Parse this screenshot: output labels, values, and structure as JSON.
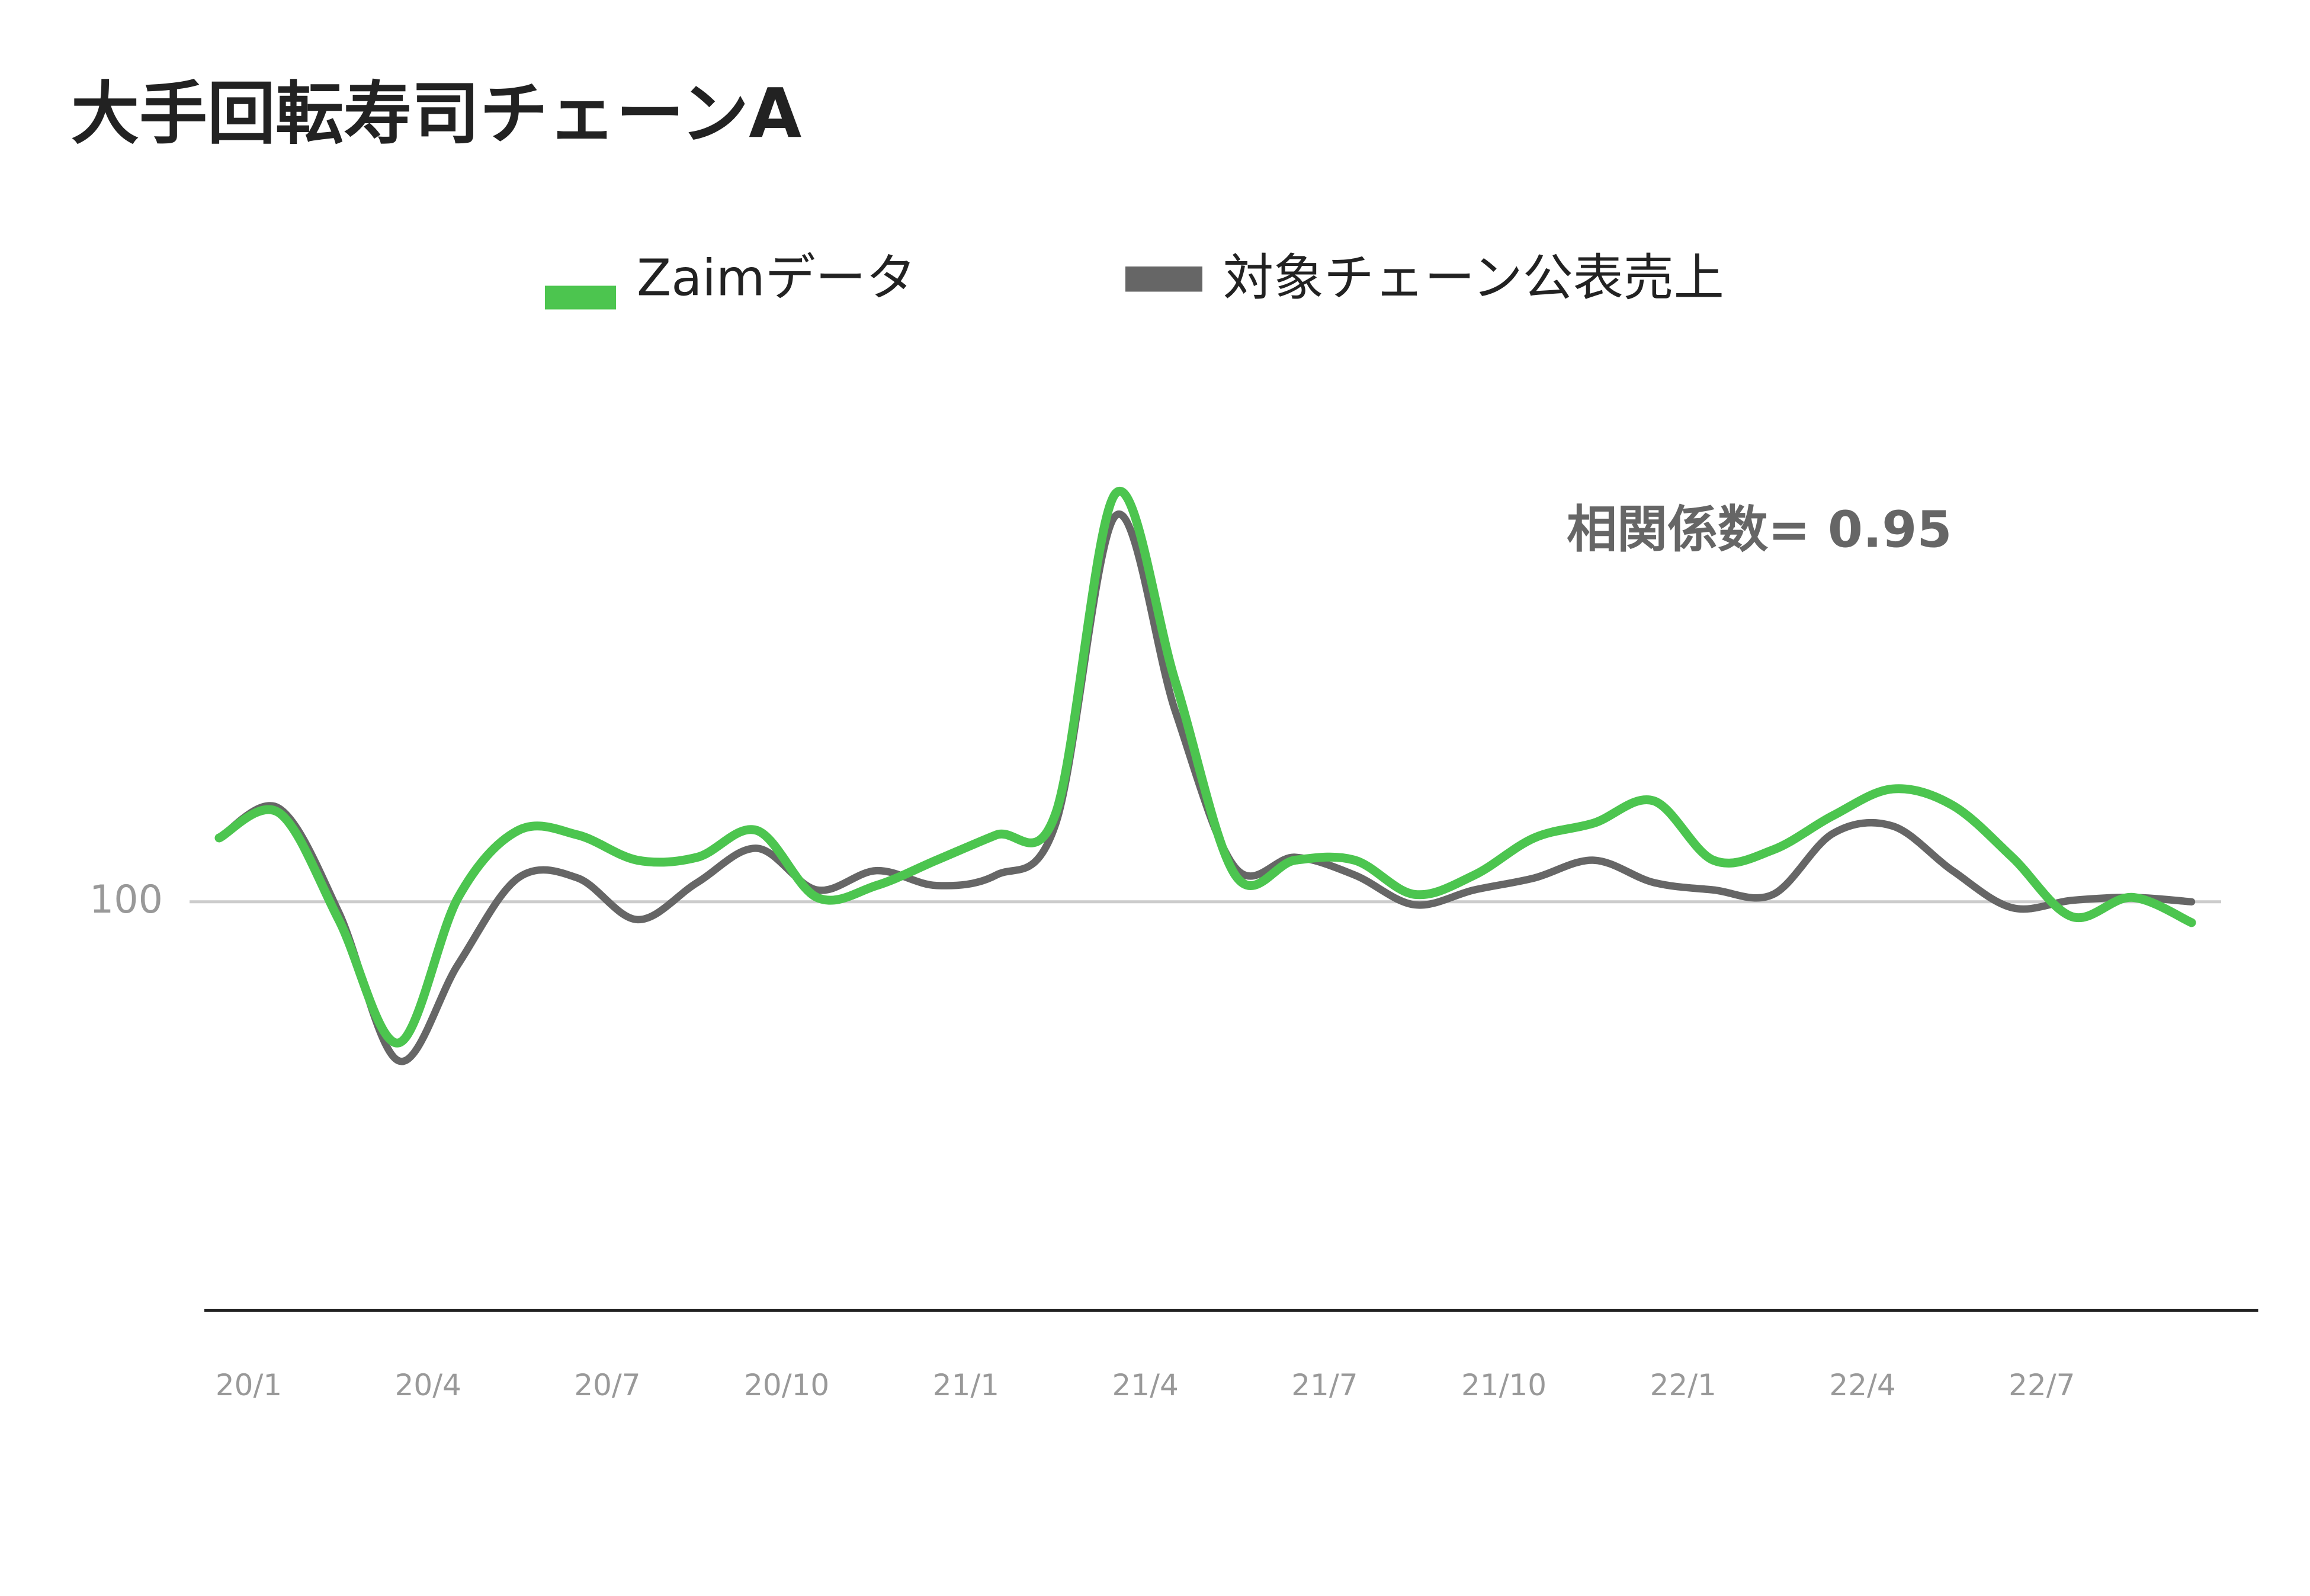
{
  "chart_data": {
    "type": "line",
    "title": "大手回転寿司チェーンA",
    "annotation": "相関係数= 0.95",
    "categories": [
      "20/1",
      null,
      null,
      "20/4",
      null,
      null,
      "20/7",
      null,
      null,
      "20/10",
      null,
      null,
      "21/1",
      null,
      null,
      "21/4",
      null,
      null,
      "21/7",
      null,
      null,
      "21/10",
      null,
      null,
      "22/1",
      null,
      null,
      "22/4",
      null,
      null,
      "22/7",
      null,
      null,
      null
    ],
    "series": [
      {
        "name": "Zaimデータ",
        "color": "#4cc54f",
        "values": [
          108.6,
          112,
          97.6,
          81,
          100.6,
          109.6,
          109,
          105.6,
          106,
          109.6,
          100.6,
          102.2,
          105.6,
          109,
          112,
          155,
          129.6,
          103.6,
          105.6,
          105.6,
          101,
          103.6,
          108.6,
          110.6,
          113.6,
          105.6,
          107,
          111.6,
          115.2,
          113,
          106,
          98,
          100.6,
          97.2
        ]
      },
      {
        "name": "対象チェーン公表売上",
        "color": "#666666",
        "values": [
          108.6,
          112.6,
          98.6,
          78.6,
          91.6,
          103.2,
          103.2,
          97.6,
          102.6,
          107.2,
          101.6,
          104.2,
          102.2,
          103.6,
          110.6,
          152,
          125.6,
          104.6,
          106,
          103.6,
          99.6,
          101.6,
          103.2,
          105.6,
          102.6,
          101.6,
          101,
          109.2,
          110.2,
          104.2,
          99.2,
          100.2,
          100.6,
          100
        ]
      }
    ],
    "ylim": [
      45,
      170
    ],
    "yticks": [
      100
    ],
    "grid": true
  }
}
